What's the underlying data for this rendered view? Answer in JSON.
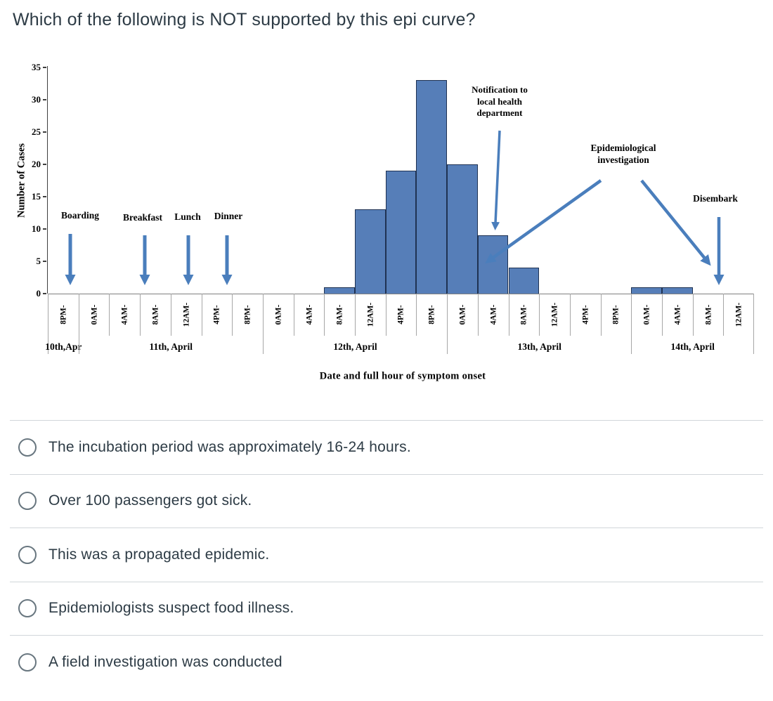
{
  "question": {
    "title": "Which of the following is NOT supported by this epi curve?",
    "options": [
      {
        "label": "The incubation period was approximately 16-24 hours."
      },
      {
        "label": "Over 100 passengers got sick."
      },
      {
        "label": "This was a propagated epidemic."
      },
      {
        "label": "Epidemiologists suspect food illness."
      },
      {
        "label": "A field investigation was conducted"
      }
    ]
  },
  "chart_data": {
    "type": "bar",
    "xlabel": "Date and full hour of symptom onset",
    "ylabel": "Number of Cases",
    "ylim": [
      0,
      35
    ],
    "ytick_step": 5,
    "grid": false,
    "categories": [
      "8PM-",
      "0AM-",
      "4AM-",
      "8AM-",
      "12AM-",
      "4PM-",
      "8PM-",
      "0AM-",
      "4AM-",
      "8AM-",
      "12AM-",
      "4PM-",
      "8PM-",
      "0AM-",
      "4AM-",
      "8AM-",
      "12AM-",
      "4PM-",
      "8PM-",
      "0AM-",
      "4AM-",
      "8AM-",
      "12AM-"
    ],
    "values": [
      0,
      0,
      0,
      0,
      0,
      0,
      0,
      0,
      0,
      1,
      13,
      19,
      33,
      20,
      9,
      4,
      0,
      0,
      0,
      1,
      1,
      0,
      0
    ],
    "date_groups": [
      {
        "label": "10th,Apr",
        "span": 1
      },
      {
        "label": "11th, April",
        "span": 6
      },
      {
        "label": "12th, April",
        "span": 6
      },
      {
        "label": "13th, April",
        "span": 6
      },
      {
        "label": "14th, April",
        "span": 4
      }
    ],
    "annotations": {
      "boarding": "Boarding",
      "breakfast": "Breakfast",
      "lunch": "Lunch",
      "dinner": "Dinner",
      "notification": "Notification to\nlocal health\ndepartment",
      "epi_investigation": "Epidemiological\ninvestigation",
      "disembark": "Disembark"
    },
    "bar_color": "#567EB8",
    "bar_border_color": "#1F3252",
    "arrow_color": "#4A7EBC"
  }
}
